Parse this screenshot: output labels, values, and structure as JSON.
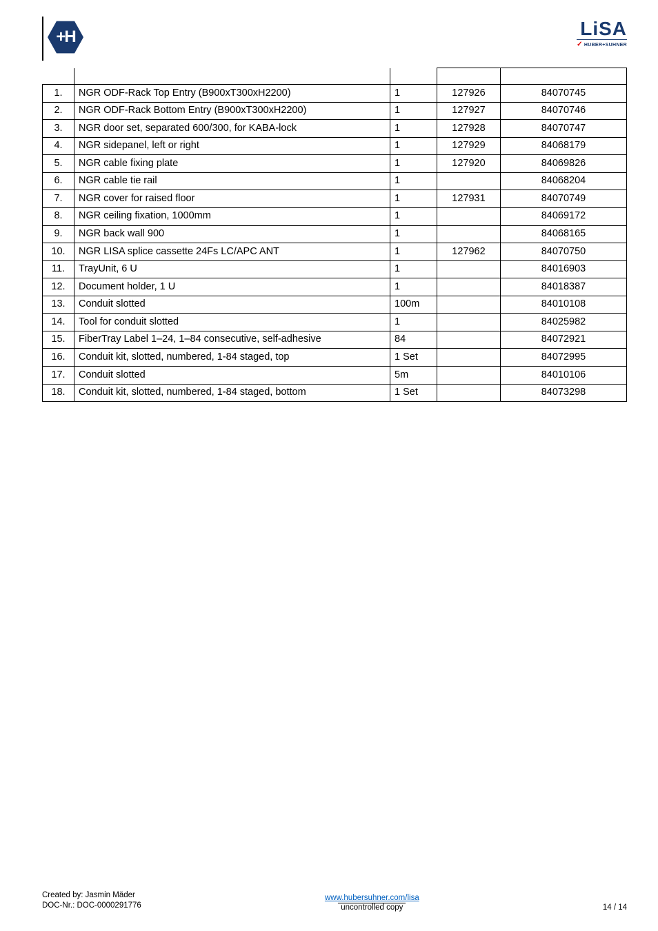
{
  "logos": {
    "left_glyph": "+H",
    "right_text": "LiSA",
    "right_sub": "HUBER+SUHNER"
  },
  "table": {
    "columns": [
      "",
      "",
      "",
      "",
      ""
    ],
    "rows": [
      {
        "n": "1.",
        "desc": "NGR ODF-Rack Top Entry (B900xT300xH2200)",
        "qty": "1",
        "c1": "127926",
        "c2": "84070745"
      },
      {
        "n": "2.",
        "desc": "NGR ODF-Rack Bottom Entry (B900xT300xH2200)",
        "qty": "1",
        "c1": "127927",
        "c2": "84070746"
      },
      {
        "n": "3.",
        "desc": "NGR door set, separated 600/300, for KABA-lock",
        "qty": "1",
        "c1": "127928",
        "c2": "84070747"
      },
      {
        "n": "4.",
        "desc": "NGR sidepanel, left or right",
        "qty": "1",
        "c1": "127929",
        "c2": "84068179"
      },
      {
        "n": "5.",
        "desc": "NGR cable fixing plate",
        "qty": "1",
        "c1": "127920",
        "c2": "84069826"
      },
      {
        "n": "6.",
        "desc": "NGR cable tie rail",
        "qty": "1",
        "c1": "",
        "c2": "84068204"
      },
      {
        "n": "7.",
        "desc": "NGR cover for raised floor",
        "qty": "1",
        "c1": "127931",
        "c2": "84070749"
      },
      {
        "n": "8.",
        "desc": "NGR ceiling fixation, 1000mm",
        "qty": "1",
        "c1": "",
        "c2": "84069172"
      },
      {
        "n": "9.",
        "desc": "NGR back wall 900",
        "qty": "1",
        "c1": "",
        "c2": "84068165"
      },
      {
        "n": "10.",
        "desc": "NGR LISA splice cassette 24Fs LC/APC ANT",
        "qty": "1",
        "c1": "127962",
        "c2": "84070750"
      },
      {
        "n": "11.",
        "desc": "TrayUnit, 6 U",
        "qty": "1",
        "c1": "",
        "c2": "84016903"
      },
      {
        "n": "12.",
        "desc": "Document holder, 1 U",
        "qty": "1",
        "c1": "",
        "c2": "84018387"
      },
      {
        "n": "13.",
        "desc": "Conduit slotted",
        "qty": "100m",
        "c1": "",
        "c2": "84010108"
      },
      {
        "n": "14.",
        "desc": "Tool for conduit slotted",
        "qty": "1",
        "c1": "",
        "c2": "84025982"
      },
      {
        "n": "15.",
        "desc": "FiberTray Label 1–24, 1–84 consecutive, self-adhesive",
        "qty": "84",
        "c1": "",
        "c2": "84072921"
      },
      {
        "n": "16.",
        "desc": "Conduit kit, slotted, numbered, 1-84 staged, top",
        "qty": "1 Set",
        "c1": "",
        "c2": "84072995"
      },
      {
        "n": "17.",
        "desc": "Conduit slotted",
        "qty": "5m",
        "c1": "",
        "c2": "84010106"
      },
      {
        "n": "18.",
        "desc": "Conduit kit, slotted, numbered, 1-84 staged, bottom",
        "qty": "1 Set",
        "c1": "",
        "c2": "84073298"
      }
    ]
  },
  "footer": {
    "created_by_label": "Created by: Jasmin Mäder",
    "doc_nr_label": "DOC-Nr.: DOC-0000291776",
    "link_text": "www.hubersuhner.com/lisa",
    "copy_text": "uncontrolled copy",
    "page_text": "14 / 14"
  },
  "colors": {
    "brand_blue": "#1a3a6e",
    "link_blue": "#0563c1",
    "border": "#000000",
    "background": "#ffffff"
  }
}
